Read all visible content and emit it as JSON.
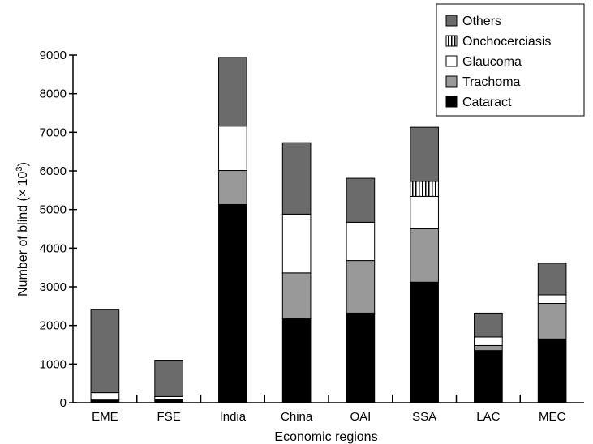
{
  "chart_data": {
    "type": "bar",
    "stacked": true,
    "title": "",
    "xlabel": "Economic regions",
    "ylabel": "Number of blind (× 10",
    "ylabel_sup": "3",
    "ylabel_close": ")",
    "ylim": [
      0,
      9000
    ],
    "yticks": [
      "0",
      "1000",
      "2000",
      "3000",
      "4000",
      "5000",
      "6000",
      "7000",
      "8000",
      "9000"
    ],
    "grid": false,
    "legend_position": "top-right",
    "categories": [
      "EME",
      "FSE",
      "India",
      "China",
      "OAI",
      "SSA",
      "LAC",
      "MEC"
    ],
    "series": [
      {
        "name": "Cataract",
        "pattern": "solid-black",
        "color": "#000000",
        "values": [
          60,
          90,
          5130,
          2170,
          2320,
          3120,
          1350,
          1650
        ]
      },
      {
        "name": "Trachoma",
        "pattern": "solid-gray",
        "color": "#999999",
        "values": [
          10,
          0,
          880,
          1190,
          1360,
          1380,
          130,
          920
        ]
      },
      {
        "name": "Glaucoma",
        "pattern": "solid-white",
        "color": "#ffffff",
        "values": [
          190,
          70,
          1150,
          1520,
          990,
          840,
          220,
          220
        ]
      },
      {
        "name": "Onchocerciasis",
        "pattern": "vertical-stripes",
        "color": "#ffffff",
        "values": [
          0,
          0,
          0,
          0,
          0,
          390,
          0,
          0
        ]
      },
      {
        "name": "Others",
        "pattern": "solid-darkgray",
        "color": "#6b6b6b",
        "values": [
          2160,
          940,
          1780,
          1850,
          1140,
          1400,
          620,
          820
        ]
      }
    ],
    "legend_order": [
      "Others",
      "Onchocerciasis",
      "Glaucoma",
      "Trachoma",
      "Cataract"
    ]
  }
}
